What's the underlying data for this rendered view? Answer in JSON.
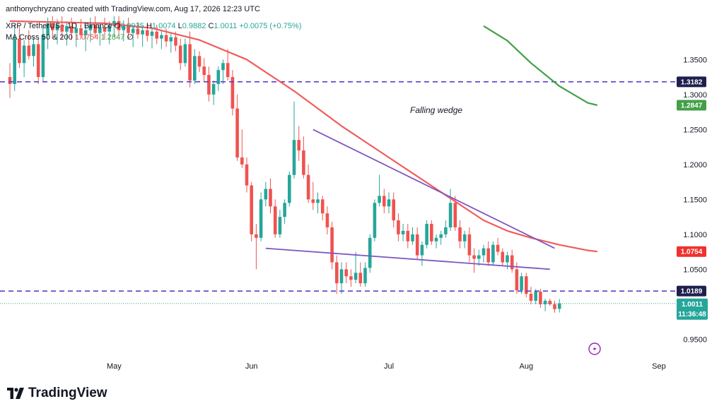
{
  "header": {
    "credit": "anthonychryzano created with TradingView.com, Aug 17, 2026 12:23 UTC",
    "symbol": "XRP / TetherUS · 1D · Binance",
    "ohlc": {
      "o_label": "O",
      "o_value": "0.9935",
      "h_label": "H",
      "h_value": "1.0074",
      "l_label": "L",
      "l_value": "0.9882",
      "c_label": "C",
      "c_value": "1.0011",
      "change": "+0.0075 (+0.75%)"
    },
    "ma": {
      "label": "MA Cross 50 & 200",
      "v1": "1.0754",
      "v2": "1.2847",
      "v3": "∅"
    }
  },
  "brand": {
    "name": "TradingView"
  },
  "annotation": {
    "text": "Falling wedge"
  },
  "chart_data": {
    "type": "candlestick",
    "symbol": "XRP / TetherUS",
    "interval": "1D",
    "exchange": "Binance",
    "x_ticks": [
      "May",
      "Jun",
      "Jul",
      "Aug",
      "Sep"
    ],
    "y_ticks": [
      "1.3500",
      "1.3000",
      "1.2500",
      "1.2000",
      "1.1500",
      "1.1000",
      "1.0500",
      "0.9500"
    ],
    "ylim": [
      0.915,
      1.415
    ],
    "grid": false,
    "candles": [
      {
        "o": 1.325,
        "h": 1.345,
        "l": 1.295,
        "c": 1.315
      },
      {
        "o": 1.315,
        "h": 1.4,
        "l": 1.305,
        "c": 1.38
      },
      {
        "o": 1.38,
        "h": 1.398,
        "l": 1.338,
        "c": 1.345
      },
      {
        "o": 1.345,
        "h": 1.378,
        "l": 1.325,
        "c": 1.37
      },
      {
        "o": 1.37,
        "h": 1.392,
        "l": 1.35,
        "c": 1.355
      },
      {
        "o": 1.355,
        "h": 1.382,
        "l": 1.34,
        "c": 1.372
      },
      {
        "o": 1.372,
        "h": 1.38,
        "l": 1.315,
        "c": 1.325
      },
      {
        "o": 1.325,
        "h": 1.396,
        "l": 1.318,
        "c": 1.385
      },
      {
        "o": 1.385,
        "h": 1.41,
        "l": 1.365,
        "c": 1.402
      },
      {
        "o": 1.402,
        "h": 1.412,
        "l": 1.38,
        "c": 1.392
      },
      {
        "o": 1.392,
        "h": 1.408,
        "l": 1.372,
        "c": 1.4
      },
      {
        "o": 1.4,
        "h": 1.412,
        "l": 1.38,
        "c": 1.39
      },
      {
        "o": 1.39,
        "h": 1.405,
        "l": 1.37,
        "c": 1.398
      },
      {
        "o": 1.398,
        "h": 1.41,
        "l": 1.378,
        "c": 1.388
      },
      {
        "o": 1.388,
        "h": 1.402,
        "l": 1.368,
        "c": 1.395
      },
      {
        "o": 1.395,
        "h": 1.408,
        "l": 1.38,
        "c": 1.385
      },
      {
        "o": 1.385,
        "h": 1.4,
        "l": 1.362,
        "c": 1.392
      },
      {
        "o": 1.392,
        "h": 1.41,
        "l": 1.375,
        "c": 1.4
      },
      {
        "o": 1.4,
        "h": 1.412,
        "l": 1.382,
        "c": 1.388
      },
      {
        "o": 1.388,
        "h": 1.402,
        "l": 1.37,
        "c": 1.396
      },
      {
        "o": 1.396,
        "h": 1.41,
        "l": 1.38,
        "c": 1.39
      },
      {
        "o": 1.39,
        "h": 1.405,
        "l": 1.372,
        "c": 1.398
      },
      {
        "o": 1.398,
        "h": 1.412,
        "l": 1.382,
        "c": 1.405
      },
      {
        "o": 1.405,
        "h": 1.412,
        "l": 1.385,
        "c": 1.392
      },
      {
        "o": 1.392,
        "h": 1.406,
        "l": 1.376,
        "c": 1.4
      },
      {
        "o": 1.4,
        "h": 1.41,
        "l": 1.38,
        "c": 1.388
      },
      {
        "o": 1.388,
        "h": 1.398,
        "l": 1.368,
        "c": 1.394
      },
      {
        "o": 1.394,
        "h": 1.404,
        "l": 1.38,
        "c": 1.386
      },
      {
        "o": 1.386,
        "h": 1.398,
        "l": 1.368,
        "c": 1.392
      },
      {
        "o": 1.392,
        "h": 1.402,
        "l": 1.376,
        "c": 1.384
      },
      {
        "o": 1.384,
        "h": 1.396,
        "l": 1.366,
        "c": 1.39
      },
      {
        "o": 1.39,
        "h": 1.4,
        "l": 1.372,
        "c": 1.38
      },
      {
        "o": 1.38,
        "h": 1.392,
        "l": 1.365,
        "c": 1.385
      },
      {
        "o": 1.385,
        "h": 1.394,
        "l": 1.368,
        "c": 1.376
      },
      {
        "o": 1.376,
        "h": 1.388,
        "l": 1.36,
        "c": 1.382
      },
      {
        "o": 1.382,
        "h": 1.39,
        "l": 1.362,
        "c": 1.37
      },
      {
        "o": 1.37,
        "h": 1.38,
        "l": 1.335,
        "c": 1.345
      },
      {
        "o": 1.345,
        "h": 1.38,
        "l": 1.34,
        "c": 1.372
      },
      {
        "o": 1.372,
        "h": 1.39,
        "l": 1.31,
        "c": 1.32
      },
      {
        "o": 1.32,
        "h": 1.365,
        "l": 1.315,
        "c": 1.355
      },
      {
        "o": 1.355,
        "h": 1.362,
        "l": 1.332,
        "c": 1.34
      },
      {
        "o": 1.34,
        "h": 1.352,
        "l": 1.318,
        "c": 1.328
      },
      {
        "o": 1.328,
        "h": 1.34,
        "l": 1.29,
        "c": 1.3
      },
      {
        "o": 1.3,
        "h": 1.32,
        "l": 1.285,
        "c": 1.315
      },
      {
        "o": 1.315,
        "h": 1.34,
        "l": 1.305,
        "c": 1.335
      },
      {
        "o": 1.335,
        "h": 1.35,
        "l": 1.315,
        "c": 1.345
      },
      {
        "o": 1.345,
        "h": 1.365,
        "l": 1.32,
        "c": 1.325
      },
      {
        "o": 1.325,
        "h": 1.335,
        "l": 1.27,
        "c": 1.28
      },
      {
        "o": 1.28,
        "h": 1.3,
        "l": 1.205,
        "c": 1.21
      },
      {
        "o": 1.21,
        "h": 1.25,
        "l": 1.195,
        "c": 1.2
      },
      {
        "o": 1.2,
        "h": 1.21,
        "l": 1.16,
        "c": 1.17
      },
      {
        "o": 1.17,
        "h": 1.175,
        "l": 1.09,
        "c": 1.1
      },
      {
        "o": 1.1,
        "h": 1.115,
        "l": 1.05,
        "c": 1.095
      },
      {
        "o": 1.095,
        "h": 1.16,
        "l": 1.09,
        "c": 1.15
      },
      {
        "o": 1.15,
        "h": 1.175,
        "l": 1.14,
        "c": 1.165
      },
      {
        "o": 1.165,
        "h": 1.18,
        "l": 1.13,
        "c": 1.14
      },
      {
        "o": 1.14,
        "h": 1.15,
        "l": 1.095,
        "c": 1.1
      },
      {
        "o": 1.1,
        "h": 1.135,
        "l": 1.095,
        "c": 1.125
      },
      {
        "o": 1.125,
        "h": 1.15,
        "l": 1.115,
        "c": 1.145
      },
      {
        "o": 1.145,
        "h": 1.19,
        "l": 1.14,
        "c": 1.185
      },
      {
        "o": 1.185,
        "h": 1.29,
        "l": 1.18,
        "c": 1.235
      },
      {
        "o": 1.235,
        "h": 1.255,
        "l": 1.205,
        "c": 1.22
      },
      {
        "o": 1.22,
        "h": 1.24,
        "l": 1.18,
        "c": 1.185
      },
      {
        "o": 1.185,
        "h": 1.2,
        "l": 1.145,
        "c": 1.15
      },
      {
        "o": 1.15,
        "h": 1.175,
        "l": 1.135,
        "c": 1.145
      },
      {
        "o": 1.145,
        "h": 1.16,
        "l": 1.13,
        "c": 1.15
      },
      {
        "o": 1.15,
        "h": 1.155,
        "l": 1.12,
        "c": 1.13
      },
      {
        "o": 1.13,
        "h": 1.14,
        "l": 1.1,
        "c": 1.11
      },
      {
        "o": 1.11,
        "h": 1.118,
        "l": 1.05,
        "c": 1.06
      },
      {
        "o": 1.06,
        "h": 1.07,
        "l": 1.015,
        "c": 1.03
      },
      {
        "o": 1.03,
        "h": 1.06,
        "l": 1.015,
        "c": 1.05
      },
      {
        "o": 1.05,
        "h": 1.06,
        "l": 1.03,
        "c": 1.04
      },
      {
        "o": 1.04,
        "h": 1.05,
        "l": 1.025,
        "c": 1.035
      },
      {
        "o": 1.035,
        "h": 1.075,
        "l": 1.03,
        "c": 1.045
      },
      {
        "o": 1.045,
        "h": 1.06,
        "l": 1.025,
        "c": 1.03
      },
      {
        "o": 1.03,
        "h": 1.06,
        "l": 1.025,
        "c": 1.052
      },
      {
        "o": 1.052,
        "h": 1.1,
        "l": 1.045,
        "c": 1.095
      },
      {
        "o": 1.095,
        "h": 1.15,
        "l": 1.09,
        "c": 1.145
      },
      {
        "o": 1.145,
        "h": 1.185,
        "l": 1.14,
        "c": 1.155
      },
      {
        "o": 1.155,
        "h": 1.165,
        "l": 1.13,
        "c": 1.14
      },
      {
        "o": 1.14,
        "h": 1.16,
        "l": 1.13,
        "c": 1.15
      },
      {
        "o": 1.15,
        "h": 1.16,
        "l": 1.11,
        "c": 1.12
      },
      {
        "o": 1.12,
        "h": 1.13,
        "l": 1.09,
        "c": 1.1
      },
      {
        "o": 1.1,
        "h": 1.115,
        "l": 1.09,
        "c": 1.105
      },
      {
        "o": 1.105,
        "h": 1.115,
        "l": 1.08,
        "c": 1.09
      },
      {
        "o": 1.09,
        "h": 1.11,
        "l": 1.085,
        "c": 1.1
      },
      {
        "o": 1.1,
        "h": 1.11,
        "l": 1.065,
        "c": 1.07
      },
      {
        "o": 1.07,
        "h": 1.09,
        "l": 1.055,
        "c": 1.085
      },
      {
        "o": 1.085,
        "h": 1.12,
        "l": 1.08,
        "c": 1.115
      },
      {
        "o": 1.115,
        "h": 1.12,
        "l": 1.085,
        "c": 1.09
      },
      {
        "o": 1.09,
        "h": 1.1,
        "l": 1.08,
        "c": 1.095
      },
      {
        "o": 1.095,
        "h": 1.105,
        "l": 1.085,
        "c": 1.1
      },
      {
        "o": 1.1,
        "h": 1.12,
        "l": 1.095,
        "c": 1.11
      },
      {
        "o": 1.11,
        "h": 1.165,
        "l": 1.105,
        "c": 1.145
      },
      {
        "o": 1.145,
        "h": 1.155,
        "l": 1.105,
        "c": 1.11
      },
      {
        "o": 1.11,
        "h": 1.12,
        "l": 1.08,
        "c": 1.09
      },
      {
        "o": 1.09,
        "h": 1.105,
        "l": 1.08,
        "c": 1.1
      },
      {
        "o": 1.1,
        "h": 1.11,
        "l": 1.06,
        "c": 1.07
      },
      {
        "o": 1.07,
        "h": 1.08,
        "l": 1.045,
        "c": 1.065
      },
      {
        "o": 1.065,
        "h": 1.078,
        "l": 1.055,
        "c": 1.07
      },
      {
        "o": 1.07,
        "h": 1.085,
        "l": 1.06,
        "c": 1.08
      },
      {
        "o": 1.08,
        "h": 1.09,
        "l": 1.055,
        "c": 1.06
      },
      {
        "o": 1.06,
        "h": 1.09,
        "l": 1.055,
        "c": 1.085
      },
      {
        "o": 1.085,
        "h": 1.095,
        "l": 1.07,
        "c": 1.075
      },
      {
        "o": 1.075,
        "h": 1.08,
        "l": 1.055,
        "c": 1.06
      },
      {
        "o": 1.06,
        "h": 1.075,
        "l": 1.05,
        "c": 1.07
      },
      {
        "o": 1.07,
        "h": 1.078,
        "l": 1.045,
        "c": 1.05
      },
      {
        "o": 1.05,
        "h": 1.06,
        "l": 1.015,
        "c": 1.02
      },
      {
        "o": 1.02,
        "h": 1.045,
        "l": 1.015,
        "c": 1.04
      },
      {
        "o": 1.04,
        "h": 1.045,
        "l": 1.01,
        "c": 1.015
      },
      {
        "o": 1.015,
        "h": 1.025,
        "l": 1.0,
        "c": 1.005
      },
      {
        "o": 1.005,
        "h": 1.022,
        "l": 1.0,
        "c": 1.018
      },
      {
        "o": 1.018,
        "h": 1.022,
        "l": 0.995,
        "c": 1.0
      },
      {
        "o": 1.0,
        "h": 1.008,
        "l": 0.99,
        "c": 1.005
      },
      {
        "o": 1.005,
        "h": 1.008,
        "l": 0.998,
        "c": 1.0
      },
      {
        "o": 1.0,
        "h": 1.005,
        "l": 0.988,
        "c": 0.993
      },
      {
        "o": 0.9935,
        "h": 1.0074,
        "l": 0.9882,
        "c": 1.0011
      }
    ],
    "ma50": {
      "value": 1.0754,
      "points": [
        [
          0,
          1.405
        ],
        [
          20,
          1.402
        ],
        [
          30,
          1.395
        ],
        [
          40,
          1.378
        ],
        [
          50,
          1.35
        ],
        [
          60,
          1.305
        ],
        [
          70,
          1.255
        ],
        [
          80,
          1.21
        ],
        [
          90,
          1.165
        ],
        [
          100,
          1.12
        ],
        [
          105,
          1.105
        ],
        [
          110,
          1.095
        ],
        [
          116,
          1.085
        ],
        [
          122,
          1.077
        ],
        [
          124,
          1.0754
        ]
      ]
    },
    "ma200": {
      "value": 1.2847,
      "points": [
        [
          100,
          1.398
        ],
        [
          105,
          1.377
        ],
        [
          110,
          1.345
        ],
        [
          116,
          1.312
        ],
        [
          122,
          1.288
        ],
        [
          124,
          1.2847
        ]
      ]
    },
    "horizontal_levels": [
      1.3182,
      1.0189
    ],
    "wedge_upper": [
      [
        64,
        1.25
      ],
      [
        115,
        1.08
      ]
    ],
    "wedge_lower": [
      [
        54,
        1.08
      ],
      [
        114,
        1.05
      ]
    ],
    "last_price": {
      "value": "1.0011",
      "countdown": "11:36:48"
    },
    "badges": [
      {
        "value": "1.3182",
        "type": "level"
      },
      {
        "value": "1.2847",
        "type": "ma200"
      },
      {
        "value": "1.0754",
        "type": "ma50"
      },
      {
        "value": "1.0189",
        "type": "level"
      }
    ]
  },
  "colors": {
    "up": "#26a69a",
    "down": "#ef5350",
    "ma50": "#f05c5c",
    "ma200": "#43a047",
    "level": "#5b3fc9",
    "wedge": "#7e57c2",
    "level_badge": "#1f1f4f",
    "last_price_badge": "#26a69a",
    "price_line": "#26a69a",
    "text": "#131722",
    "lightning": "#9c27b0"
  }
}
